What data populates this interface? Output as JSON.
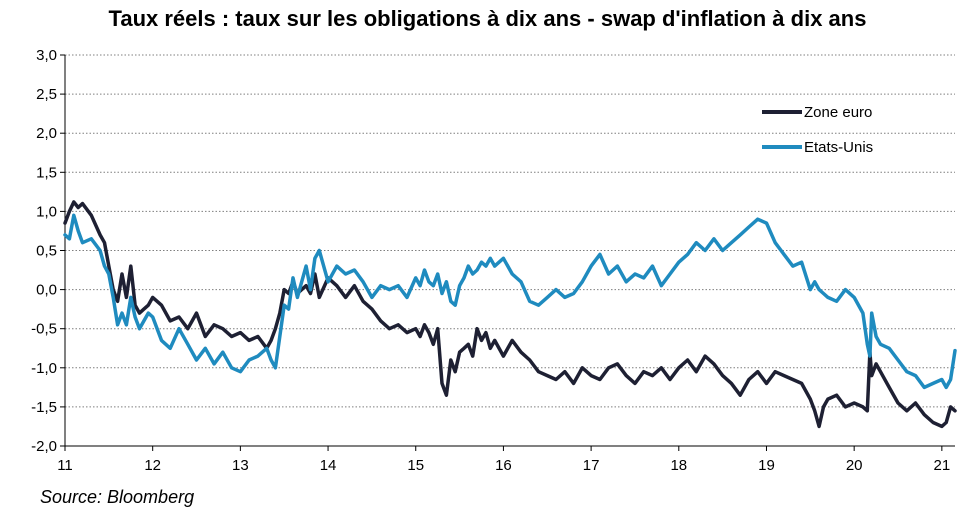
{
  "chart_data": {
    "type": "line",
    "title": "Taux réels : taux sur les obligations à dix ans - swap d'inflation à dix ans",
    "source": "Source: Bloomberg",
    "xlabel": "",
    "ylabel": "",
    "xlim": [
      2011,
      2021.15
    ],
    "ylim": [
      -2.0,
      3.0
    ],
    "x_ticks": [
      {
        "value": 2011,
        "label": "11"
      },
      {
        "value": 2012,
        "label": "12"
      },
      {
        "value": 2013,
        "label": "13"
      },
      {
        "value": 2014,
        "label": "14"
      },
      {
        "value": 2015,
        "label": "15"
      },
      {
        "value": 2016,
        "label": "16"
      },
      {
        "value": 2017,
        "label": "17"
      },
      {
        "value": 2018,
        "label": "18"
      },
      {
        "value": 2019,
        "label": "19"
      },
      {
        "value": 2020,
        "label": "20"
      },
      {
        "value": 2021,
        "label": "21"
      }
    ],
    "y_ticks": [
      {
        "value": 3.0,
        "label": "3,0"
      },
      {
        "value": 2.5,
        "label": "2,5"
      },
      {
        "value": 2.0,
        "label": "2,0"
      },
      {
        "value": 1.5,
        "label": "1,5"
      },
      {
        "value": 1.0,
        "label": "1,0"
      },
      {
        "value": 0.5,
        "label": "0,5"
      },
      {
        "value": 0.0,
        "label": "0,0"
      },
      {
        "value": -0.5,
        "label": "-0,5"
      },
      {
        "value": -1.0,
        "label": "-1,0"
      },
      {
        "value": -1.5,
        "label": "-1,5"
      },
      {
        "value": -2.0,
        "label": "-2,0"
      }
    ],
    "grid": "horizontal dotted",
    "legend_position": "top-right",
    "series": [
      {
        "name": "Zone euro",
        "color": "#1e2033",
        "x": [
          2011.0,
          2011.05,
          2011.1,
          2011.15,
          2011.2,
          2011.3,
          2011.4,
          2011.45,
          2011.5,
          2011.55,
          2011.6,
          2011.65,
          2011.7,
          2011.75,
          2011.8,
          2011.85,
          2011.9,
          2011.95,
          2012.0,
          2012.1,
          2012.2,
          2012.3,
          2012.4,
          2012.5,
          2012.6,
          2012.7,
          2012.8,
          2012.9,
          2013.0,
          2013.1,
          2013.2,
          2013.3,
          2013.35,
          2013.4,
          2013.45,
          2013.5,
          2013.55,
          2013.6,
          2013.65,
          2013.7,
          2013.75,
          2013.8,
          2013.85,
          2013.9,
          2014.0,
          2014.1,
          2014.2,
          2014.3,
          2014.4,
          2014.5,
          2014.6,
          2014.7,
          2014.8,
          2014.9,
          2015.0,
          2015.05,
          2015.1,
          2015.15,
          2015.2,
          2015.25,
          2015.3,
          2015.35,
          2015.4,
          2015.45,
          2015.5,
          2015.55,
          2015.6,
          2015.65,
          2015.7,
          2015.75,
          2015.8,
          2015.85,
          2015.9,
          2016.0,
          2016.1,
          2016.2,
          2016.3,
          2016.4,
          2016.5,
          2016.6,
          2016.7,
          2016.8,
          2016.9,
          2017.0,
          2017.1,
          2017.2,
          2017.3,
          2017.4,
          2017.5,
          2017.6,
          2017.7,
          2017.8,
          2017.9,
          2018.0,
          2018.1,
          2018.2,
          2018.3,
          2018.4,
          2018.5,
          2018.6,
          2018.7,
          2018.8,
          2018.9,
          2019.0,
          2019.1,
          2019.2,
          2019.3,
          2019.4,
          2019.5,
          2019.55,
          2019.6,
          2019.65,
          2019.7,
          2019.8,
          2019.9,
          2020.0,
          2020.1,
          2020.15,
          2020.18,
          2020.2,
          2020.25,
          2020.3,
          2020.4,
          2020.5,
          2020.6,
          2020.7,
          2020.8,
          2020.9,
          2021.0,
          2021.05,
          2021.1,
          2021.15
        ],
        "values": [
          0.85,
          1.0,
          1.12,
          1.05,
          1.1,
          0.95,
          0.7,
          0.6,
          0.3,
          0.0,
          -0.15,
          0.2,
          -0.1,
          0.3,
          -0.2,
          -0.3,
          -0.25,
          -0.2,
          -0.1,
          -0.2,
          -0.4,
          -0.35,
          -0.5,
          -0.3,
          -0.6,
          -0.45,
          -0.5,
          -0.6,
          -0.55,
          -0.65,
          -0.6,
          -0.75,
          -0.65,
          -0.5,
          -0.3,
          0.0,
          -0.05,
          0.1,
          -0.05,
          0.0,
          0.05,
          -0.05,
          0.2,
          -0.1,
          0.15,
          0.05,
          -0.1,
          0.05,
          -0.15,
          -0.25,
          -0.4,
          -0.5,
          -0.45,
          -0.55,
          -0.5,
          -0.6,
          -0.45,
          -0.55,
          -0.7,
          -0.5,
          -1.2,
          -1.35,
          -0.9,
          -1.05,
          -0.8,
          -0.75,
          -0.7,
          -0.85,
          -0.5,
          -0.65,
          -0.55,
          -0.75,
          -0.65,
          -0.85,
          -0.65,
          -0.8,
          -0.9,
          -1.05,
          -1.1,
          -1.15,
          -1.05,
          -1.2,
          -1.0,
          -1.1,
          -1.15,
          -1.0,
          -0.95,
          -1.1,
          -1.2,
          -1.05,
          -1.1,
          -1.0,
          -1.15,
          -1.0,
          -0.9,
          -1.05,
          -0.85,
          -0.95,
          -1.1,
          -1.2,
          -1.35,
          -1.15,
          -1.05,
          -1.2,
          -1.05,
          -1.1,
          -1.15,
          -1.2,
          -1.4,
          -1.55,
          -1.75,
          -1.5,
          -1.4,
          -1.35,
          -1.5,
          -1.45,
          -1.5,
          -1.55,
          -0.8,
          -1.1,
          -0.95,
          -1.05,
          -1.25,
          -1.45,
          -1.55,
          -1.45,
          -1.6,
          -1.7,
          -1.75,
          -1.7,
          -1.5,
          -1.55
        ]
      },
      {
        "name": "Etats-Unis",
        "color": "#1f8bbf",
        "x": [
          2011.0,
          2011.05,
          2011.1,
          2011.15,
          2011.2,
          2011.3,
          2011.4,
          2011.45,
          2011.5,
          2011.55,
          2011.6,
          2011.65,
          2011.7,
          2011.75,
          2011.8,
          2011.85,
          2011.9,
          2011.95,
          2012.0,
          2012.1,
          2012.2,
          2012.3,
          2012.4,
          2012.5,
          2012.6,
          2012.7,
          2012.8,
          2012.9,
          2013.0,
          2013.1,
          2013.2,
          2013.3,
          2013.35,
          2013.4,
          2013.45,
          2013.5,
          2013.55,
          2013.6,
          2013.65,
          2013.7,
          2013.75,
          2013.8,
          2013.85,
          2013.9,
          2014.0,
          2014.1,
          2014.2,
          2014.3,
          2014.4,
          2014.5,
          2014.6,
          2014.7,
          2014.8,
          2014.9,
          2015.0,
          2015.05,
          2015.1,
          2015.15,
          2015.2,
          2015.25,
          2015.3,
          2015.35,
          2015.4,
          2015.45,
          2015.5,
          2015.55,
          2015.6,
          2015.65,
          2015.7,
          2015.75,
          2015.8,
          2015.85,
          2015.9,
          2016.0,
          2016.1,
          2016.2,
          2016.3,
          2016.4,
          2016.5,
          2016.6,
          2016.7,
          2016.8,
          2016.9,
          2017.0,
          2017.1,
          2017.2,
          2017.3,
          2017.4,
          2017.5,
          2017.6,
          2017.7,
          2017.8,
          2017.9,
          2018.0,
          2018.1,
          2018.2,
          2018.3,
          2018.4,
          2018.5,
          2018.6,
          2018.7,
          2018.8,
          2018.9,
          2019.0,
          2019.1,
          2019.2,
          2019.3,
          2019.4,
          2019.5,
          2019.55,
          2019.6,
          2019.65,
          2019.7,
          2019.8,
          2019.9,
          2020.0,
          2020.1,
          2020.15,
          2020.18,
          2020.2,
          2020.25,
          2020.3,
          2020.4,
          2020.5,
          2020.6,
          2020.7,
          2020.8,
          2020.9,
          2021.0,
          2021.05,
          2021.1,
          2021.15
        ],
        "values": [
          0.7,
          0.65,
          0.95,
          0.75,
          0.6,
          0.65,
          0.5,
          0.3,
          0.2,
          -0.1,
          -0.45,
          -0.3,
          -0.45,
          -0.1,
          -0.35,
          -0.5,
          -0.4,
          -0.3,
          -0.35,
          -0.65,
          -0.75,
          -0.5,
          -0.7,
          -0.9,
          -0.75,
          -0.95,
          -0.8,
          -1.0,
          -1.05,
          -0.9,
          -0.85,
          -0.75,
          -0.9,
          -1.0,
          -0.6,
          -0.2,
          -0.25,
          0.15,
          -0.1,
          0.1,
          0.3,
          0.0,
          0.4,
          0.5,
          0.1,
          0.3,
          0.2,
          0.25,
          0.1,
          -0.1,
          0.05,
          0.0,
          0.05,
          -0.1,
          0.15,
          0.05,
          0.25,
          0.1,
          0.05,
          0.2,
          -0.05,
          0.1,
          -0.15,
          -0.2,
          0.05,
          0.15,
          0.3,
          0.2,
          0.25,
          0.35,
          0.3,
          0.4,
          0.3,
          0.4,
          0.2,
          0.1,
          -0.15,
          -0.2,
          -0.1,
          0.0,
          -0.1,
          -0.05,
          0.1,
          0.3,
          0.45,
          0.2,
          0.3,
          0.1,
          0.2,
          0.15,
          0.3,
          0.05,
          0.2,
          0.35,
          0.45,
          0.6,
          0.5,
          0.65,
          0.5,
          0.6,
          0.7,
          0.8,
          0.9,
          0.85,
          0.6,
          0.45,
          0.3,
          0.35,
          0.0,
          0.1,
          0.0,
          -0.05,
          -0.1,
          -0.15,
          0.0,
          -0.1,
          -0.3,
          -0.7,
          -0.85,
          -0.3,
          -0.6,
          -0.7,
          -0.75,
          -0.9,
          -1.05,
          -1.1,
          -1.25,
          -1.2,
          -1.15,
          -1.25,
          -1.15,
          -0.78
        ]
      }
    ]
  }
}
